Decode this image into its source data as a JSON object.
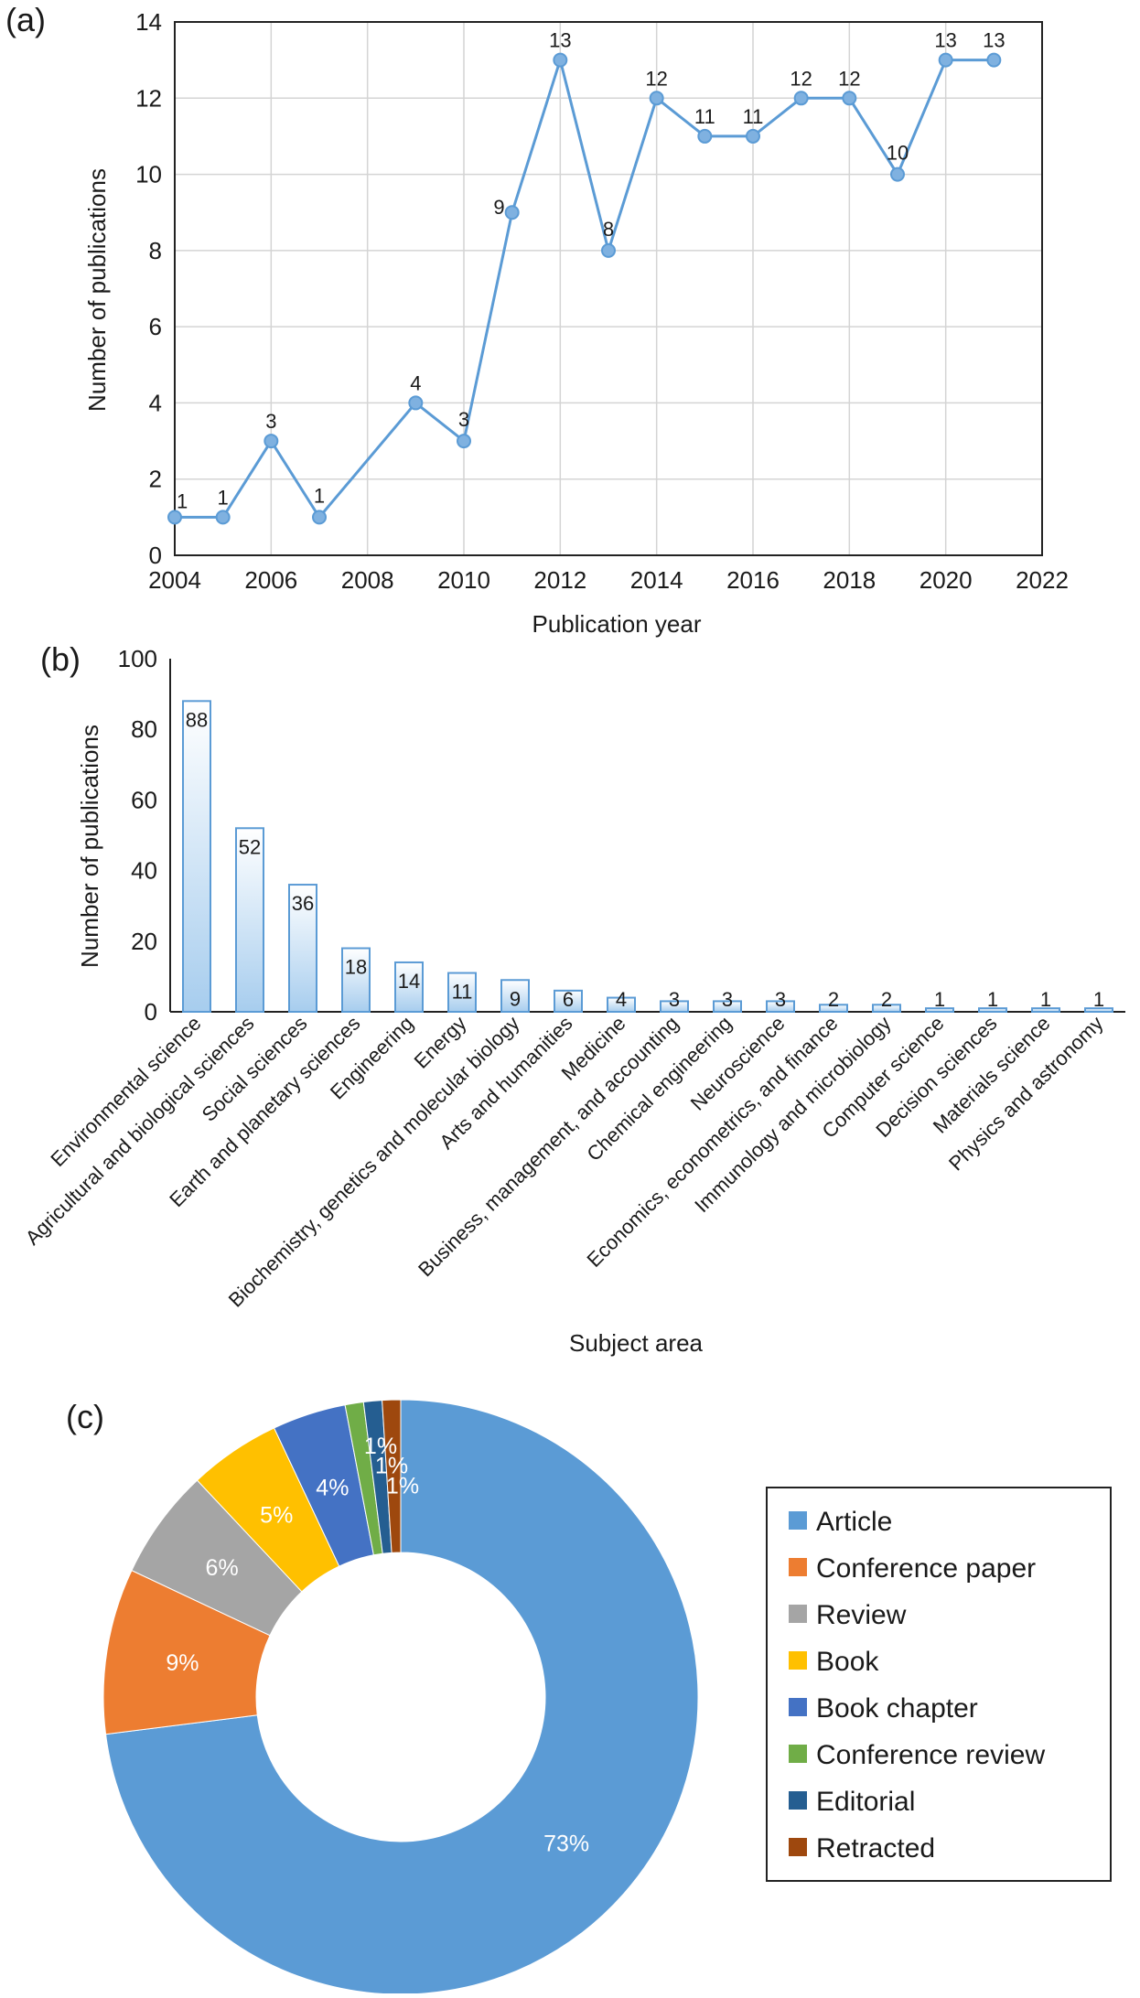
{
  "chart_data": [
    {
      "panel": "(a)",
      "type": "line",
      "x": [
        2004,
        2005,
        2006,
        2007,
        2009,
        2010,
        2011,
        2012,
        2013,
        2014,
        2015,
        2016,
        2017,
        2018,
        2019,
        2020,
        2021
      ],
      "y": [
        1,
        1,
        3,
        1,
        4,
        3,
        9,
        13,
        8,
        12,
        11,
        11,
        12,
        12,
        10,
        13,
        13
      ],
      "xlabel": "Publication year",
      "ylabel": "Number of publications",
      "xlim": [
        2004,
        2022
      ],
      "ylim": [
        0,
        14
      ],
      "xticks": [
        2004,
        2006,
        2008,
        2010,
        2012,
        2014,
        2016,
        2018,
        2020,
        2022
      ],
      "yticks": [
        0,
        2,
        4,
        6,
        8,
        10,
        12,
        14
      ],
      "grid": true,
      "color": "#5b9bd5"
    },
    {
      "panel": "(b)",
      "type": "bar",
      "categories": [
        "Environmental science",
        "Agricultural and biological sciences",
        "Social sciences",
        "Earth and planetary sciences",
        "Engineering",
        "Energy",
        "Biochemistry, genetics and molecular biology",
        "Arts and humanities",
        "Medicine",
        "Business, management, and accounting",
        "Chemical engineering",
        "Neuroscience",
        "Economics, econometrics, and finance",
        "Immunology and microbiology",
        "Computer science",
        "Decision sciences",
        "Materials science",
        "Physics and astronomy"
      ],
      "values": [
        88,
        52,
        36,
        18,
        14,
        11,
        9,
        6,
        4,
        3,
        3,
        3,
        2,
        2,
        1,
        1,
        1,
        1
      ],
      "xlabel": "Subject area",
      "ylabel": "Number of publications",
      "ylim": [
        0,
        100
      ],
      "yticks": [
        0,
        20,
        40,
        60,
        80,
        100
      ],
      "grid": false,
      "color": "#5b9bd5"
    },
    {
      "panel": "(c)",
      "type": "pie",
      "style": "donut",
      "labels": [
        "Article",
        "Conference paper",
        "Review",
        "Book",
        "Book chapter",
        "Conference review",
        "Editorial",
        "Retracted"
      ],
      "values": [
        73,
        9,
        6,
        5,
        4,
        1,
        1,
        1
      ],
      "value_labels": [
        "73%",
        "9%",
        "6%",
        "5%",
        "4%",
        "1%",
        "1%",
        "1%"
      ],
      "colors": [
        "#5b9bd5",
        "#ed7d31",
        "#a5a5a5",
        "#ffc000",
        "#4472c4",
        "#70ad47",
        "#255e91",
        "#9e480e"
      ],
      "legend_position": "right"
    }
  ]
}
